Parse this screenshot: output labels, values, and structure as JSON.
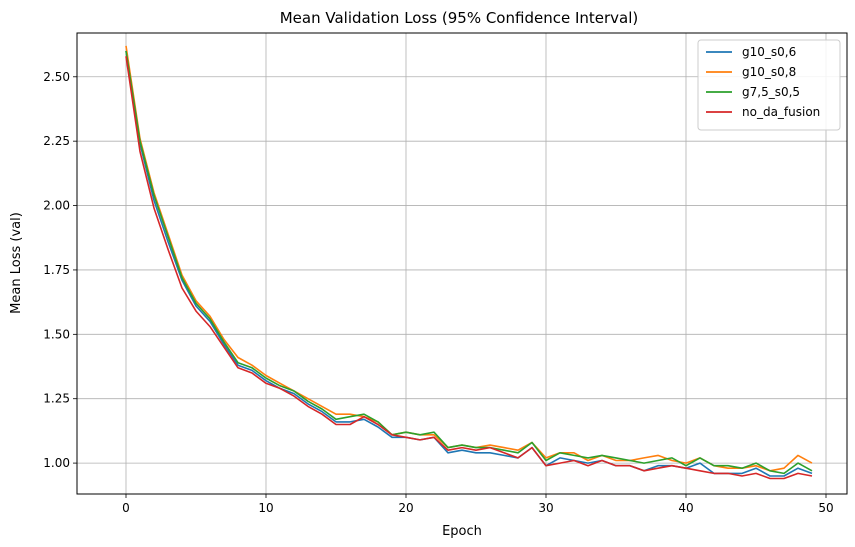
{
  "chart_data": {
    "type": "line",
    "title": "Mean Validation Loss (95% Confidence Interval)",
    "xlabel": "Epoch",
    "ylabel": "Mean Loss (val)",
    "xlim": [
      -3.5,
      51.5
    ],
    "ylim": [
      0.88,
      2.67
    ],
    "xticks": [
      0,
      10,
      20,
      30,
      40,
      50
    ],
    "yticks": [
      1.0,
      1.25,
      1.5,
      1.75,
      2.0,
      2.25,
      2.5
    ],
    "xtick_labels": [
      "0",
      "10",
      "20",
      "30",
      "40",
      "50"
    ],
    "ytick_labels": [
      "1.00",
      "1.25",
      "1.50",
      "1.75",
      "2.00",
      "2.25",
      "2.50"
    ],
    "grid": true,
    "legend_position": "top-right",
    "x": [
      0,
      1,
      2,
      3,
      4,
      5,
      6,
      7,
      8,
      9,
      10,
      11,
      12,
      13,
      14,
      15,
      16,
      17,
      18,
      19,
      20,
      21,
      22,
      23,
      24,
      25,
      26,
      27,
      28,
      29,
      30,
      31,
      32,
      33,
      34,
      35,
      36,
      37,
      38,
      39,
      40,
      41,
      42,
      43,
      44,
      45,
      46,
      47,
      48,
      49
    ],
    "series": [
      {
        "name": "g10_s0,6",
        "color": "#1f77b4",
        "values": [
          2.6,
          2.24,
          2.02,
          1.86,
          1.71,
          1.61,
          1.55,
          1.46,
          1.38,
          1.36,
          1.32,
          1.29,
          1.27,
          1.23,
          1.2,
          1.16,
          1.16,
          1.17,
          1.14,
          1.1,
          1.1,
          1.09,
          1.1,
          1.04,
          1.05,
          1.04,
          1.04,
          1.03,
          1.02,
          1.06,
          0.99,
          1.02,
          1.01,
          1.0,
          1.01,
          0.99,
          0.99,
          0.97,
          0.99,
          0.99,
          0.98,
          1.0,
          0.96,
          0.96,
          0.96,
          0.98,
          0.95,
          0.95,
          0.98,
          0.96
        ]
      },
      {
        "name": "g10_s0,8",
        "color": "#ff7f0e",
        "values": [
          2.62,
          2.26,
          2.05,
          1.89,
          1.73,
          1.63,
          1.57,
          1.48,
          1.41,
          1.38,
          1.34,
          1.31,
          1.28,
          1.25,
          1.22,
          1.19,
          1.19,
          1.18,
          1.16,
          1.11,
          1.12,
          1.11,
          1.11,
          1.06,
          1.07,
          1.06,
          1.07,
          1.06,
          1.05,
          1.08,
          1.02,
          1.04,
          1.04,
          1.01,
          1.03,
          1.01,
          1.01,
          1.02,
          1.03,
          1.01,
          1.0,
          1.02,
          0.99,
          0.98,
          0.98,
          0.99,
          0.97,
          0.98,
          1.03,
          1.0
        ]
      },
      {
        "name": "g7,5_s0,5",
        "color": "#2ca02c",
        "values": [
          2.6,
          2.25,
          2.04,
          1.88,
          1.72,
          1.62,
          1.56,
          1.47,
          1.39,
          1.37,
          1.33,
          1.3,
          1.28,
          1.24,
          1.21,
          1.17,
          1.18,
          1.19,
          1.16,
          1.11,
          1.12,
          1.11,
          1.12,
          1.06,
          1.07,
          1.06,
          1.06,
          1.05,
          1.04,
          1.08,
          1.01,
          1.04,
          1.03,
          1.02,
          1.03,
          1.02,
          1.01,
          1.0,
          1.01,
          1.02,
          0.99,
          1.02,
          0.99,
          0.99,
          0.98,
          1.0,
          0.97,
          0.96,
          1.0,
          0.97
        ]
      },
      {
        "name": "no_da_fusion",
        "color": "#d62728",
        "values": [
          2.58,
          2.21,
          1.99,
          1.83,
          1.68,
          1.59,
          1.53,
          1.45,
          1.37,
          1.35,
          1.31,
          1.29,
          1.26,
          1.22,
          1.19,
          1.15,
          1.15,
          1.18,
          1.15,
          1.11,
          1.1,
          1.09,
          1.1,
          1.05,
          1.06,
          1.05,
          1.06,
          1.04,
          1.02,
          1.06,
          0.99,
          1.0,
          1.01,
          0.99,
          1.01,
          0.99,
          0.99,
          0.97,
          0.98,
          0.99,
          0.98,
          0.97,
          0.96,
          0.96,
          0.95,
          0.96,
          0.94,
          0.94,
          0.96,
          0.95
        ]
      }
    ]
  }
}
